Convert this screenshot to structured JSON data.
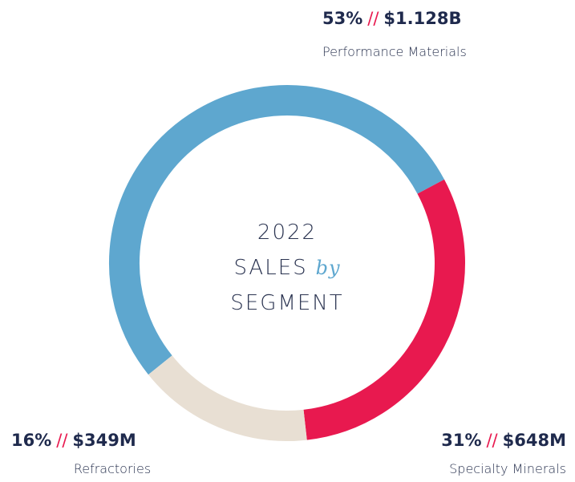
{
  "chart_data": {
    "type": "donut",
    "title": {
      "year": "2022",
      "line1": "SALES",
      "connector": "by",
      "line2": "SEGMENT"
    },
    "categories": [
      "Performance Materials",
      "Specialty Minerals",
      "Refractories"
    ],
    "values": [
      53,
      31,
      16
    ],
    "value_labels": [
      "53%",
      "31%",
      "16%"
    ],
    "amounts": [
      1128000000,
      648000000,
      349000000
    ],
    "amount_labels": [
      "$1.128B",
      "$648M",
      "$349M"
    ],
    "separator": "//",
    "colors": [
      "#5ea7cf",
      "#e8194f",
      "#e8dfd3"
    ]
  }
}
